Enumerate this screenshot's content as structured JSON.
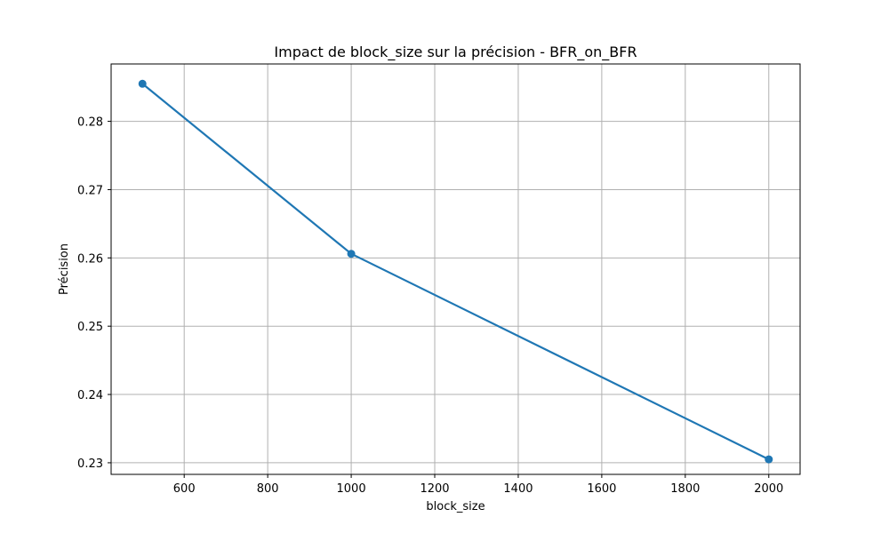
{
  "chart_data": {
    "type": "line",
    "title": "Impact de block_size sur la précision - BFR_on_BFR",
    "xlabel": "block_size",
    "ylabel": "Précision",
    "x": [
      500,
      1000,
      2000
    ],
    "series": [
      {
        "values": [
          0.2855,
          0.2606,
          0.2305
        ],
        "color": "#1f77b4",
        "marker": "circle"
      }
    ],
    "xlim": [
      425,
      2075
    ],
    "ylim": [
      0.2283,
      0.2884
    ],
    "xticks": [
      600,
      800,
      1000,
      1200,
      1400,
      1600,
      1800,
      2000
    ],
    "xtick_labels": [
      "600",
      "800",
      "1000",
      "1200",
      "1400",
      "1600",
      "1800",
      "2000"
    ],
    "yticks": [
      0.23,
      0.24,
      0.25,
      0.26,
      0.27,
      0.28
    ],
    "ytick_labels": [
      "0.23",
      "0.24",
      "0.25",
      "0.26",
      "0.27",
      "0.28"
    ],
    "grid": true,
    "grid_color": "#b0b0b0"
  }
}
